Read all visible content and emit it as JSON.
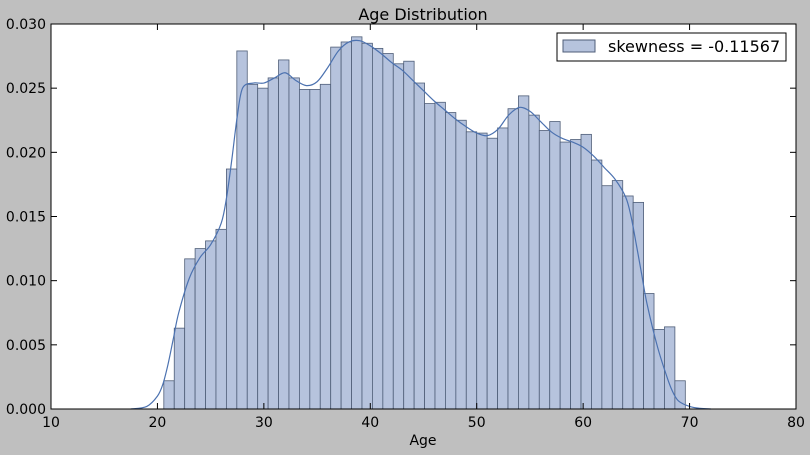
{
  "chart_data": {
    "type": "bar",
    "title": "Age Distribution",
    "xlabel": "Age",
    "ylabel": "",
    "xlim": [
      10,
      80
    ],
    "ylim": [
      0,
      0.03
    ],
    "xticks": [
      "10",
      "20",
      "30",
      "40",
      "50",
      "60",
      "70",
      "80"
    ],
    "yticks": [
      "0.000",
      "0.005",
      "0.010",
      "0.015",
      "0.020",
      "0.025",
      "0.030"
    ],
    "grid": false,
    "legend_position": "top-right",
    "legend_label": "skewness = -0.11567",
    "bin_start": 20.6,
    "bin_width": 0.98,
    "values": [
      0.0022,
      0.0063,
      0.0117,
      0.0125,
      0.0131,
      0.014,
      0.0187,
      0.0279,
      0.0253,
      0.025,
      0.0258,
      0.0272,
      0.0258,
      0.0249,
      0.0249,
      0.0253,
      0.0282,
      0.0286,
      0.029,
      0.0285,
      0.0281,
      0.0277,
      0.0269,
      0.0271,
      0.0254,
      0.0238,
      0.0239,
      0.0231,
      0.0225,
      0.0216,
      0.0215,
      0.0211,
      0.0219,
      0.0234,
      0.0244,
      0.0229,
      0.0217,
      0.0224,
      0.0208,
      0.021,
      0.0214,
      0.0194,
      0.0174,
      0.0178,
      0.0166,
      0.0161,
      0.009,
      0.0062,
      0.0064,
      0.0022
    ],
    "kde_x": [
      17.5,
      19,
      20,
      20.5,
      21,
      21.5,
      22,
      23,
      24,
      25,
      26,
      26.5,
      27,
      27.5,
      28,
      29,
      30,
      31,
      32,
      33,
      34,
      35,
      36,
      37,
      38,
      39,
      40,
      41,
      42,
      43,
      44,
      45,
      46,
      47,
      48,
      49,
      50,
      51,
      52,
      53,
      54,
      55,
      56,
      57,
      58,
      59,
      60,
      61,
      62,
      63,
      64,
      64.5,
      65,
      65.5,
      66,
      67,
      68,
      68.5,
      69,
      70,
      71,
      72
    ],
    "kde_y": [
      0.0,
      0.0002,
      0.001,
      0.0019,
      0.0035,
      0.0055,
      0.0075,
      0.0102,
      0.0118,
      0.0128,
      0.0145,
      0.0165,
      0.0195,
      0.0228,
      0.025,
      0.0254,
      0.0254,
      0.0258,
      0.0262,
      0.0256,
      0.0252,
      0.0255,
      0.0266,
      0.0279,
      0.0286,
      0.0287,
      0.0283,
      0.0277,
      0.027,
      0.0264,
      0.0256,
      0.0248,
      0.024,
      0.0233,
      0.0226,
      0.022,
      0.0215,
      0.0213,
      0.0218,
      0.0229,
      0.0235,
      0.0232,
      0.0224,
      0.0216,
      0.0211,
      0.0208,
      0.0204,
      0.0197,
      0.0188,
      0.0179,
      0.0165,
      0.015,
      0.0128,
      0.0105,
      0.0082,
      0.0048,
      0.0022,
      0.0012,
      0.0006,
      0.0002,
      5e-05,
      0.0
    ]
  },
  "colors": {
    "bar_fill": "#b6c3dd",
    "bar_edge": "#4f5e78",
    "kde_line": "#4c72b0",
    "background": "#bfbfbf",
    "plot_bg": "#ffffff"
  }
}
